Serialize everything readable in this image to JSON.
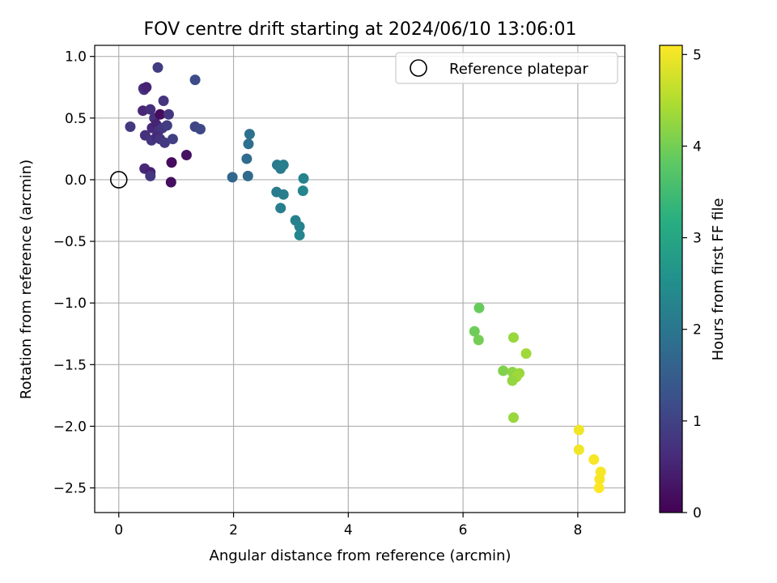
{
  "chart_data": {
    "type": "scatter",
    "title": "FOV centre drift starting at 2024/06/10 13:06:01",
    "xlabel": "Angular distance from reference (arcmin)",
    "ylabel": "Rotation from reference (arcmin)",
    "xlim": [
      -0.42,
      8.82
    ],
    "ylim": [
      -2.7,
      1.09
    ],
    "xticks": [
      0,
      2,
      4,
      6,
      8
    ],
    "xtick_labels": [
      "0",
      "2",
      "4",
      "6",
      "8"
    ],
    "yticks": [
      1.0,
      0.5,
      0.0,
      -0.5,
      -1.0,
      -1.5,
      -2.0,
      -2.5
    ],
    "ytick_labels": [
      "1.0",
      "0.5",
      "0.0",
      "−0.5",
      "−1.0",
      "−1.5",
      "−2.0",
      "−2.5"
    ],
    "grid": true,
    "legend": {
      "position": "upper right",
      "entries": [
        "Reference platepar"
      ]
    },
    "reference_point": {
      "x": 0.0,
      "y": 0.0
    },
    "colorbar": {
      "label": "Hours from first FF file",
      "range": [
        0,
        5.1
      ],
      "ticks": [
        0,
        1,
        2,
        3,
        4,
        5
      ],
      "tick_labels": [
        "0",
        "1",
        "2",
        "3",
        "4",
        "5"
      ],
      "colormap": "viridis"
    },
    "points": [
      {
        "x": 0.2,
        "y": 0.43,
        "h": 0.85
      },
      {
        "x": 0.43,
        "y": 0.74,
        "h": 0.6
      },
      {
        "x": 0.44,
        "y": 0.73,
        "h": 0.7
      },
      {
        "x": 0.48,
        "y": 0.75,
        "h": 0.5
      },
      {
        "x": 0.68,
        "y": 0.91,
        "h": 0.9
      },
      {
        "x": 0.78,
        "y": 0.64,
        "h": 0.75
      },
      {
        "x": 0.42,
        "y": 0.56,
        "h": 0.55
      },
      {
        "x": 0.55,
        "y": 0.57,
        "h": 0.65
      },
      {
        "x": 0.62,
        "y": 0.5,
        "h": 0.7
      },
      {
        "x": 0.72,
        "y": 0.53,
        "h": 0.15
      },
      {
        "x": 0.87,
        "y": 0.53,
        "h": 0.8
      },
      {
        "x": 0.58,
        "y": 0.42,
        "h": 0.6
      },
      {
        "x": 0.65,
        "y": 0.45,
        "h": 0.5
      },
      {
        "x": 0.7,
        "y": 0.4,
        "h": 0.7
      },
      {
        "x": 0.76,
        "y": 0.42,
        "h": 0.8
      },
      {
        "x": 0.84,
        "y": 0.44,
        "h": 0.9
      },
      {
        "x": 0.46,
        "y": 0.36,
        "h": 0.7
      },
      {
        "x": 0.57,
        "y": 0.32,
        "h": 0.8
      },
      {
        "x": 0.66,
        "y": 0.35,
        "h": 0.6
      },
      {
        "x": 0.72,
        "y": 0.33,
        "h": 0.75
      },
      {
        "x": 0.8,
        "y": 0.3,
        "h": 0.85
      },
      {
        "x": 0.94,
        "y": 0.33,
        "h": 0.95
      },
      {
        "x": 1.18,
        "y": 0.2,
        "h": 0.25
      },
      {
        "x": 0.92,
        "y": 0.14,
        "h": 0.15
      },
      {
        "x": 0.45,
        "y": 0.09,
        "h": 0.55
      },
      {
        "x": 0.55,
        "y": 0.06,
        "h": 0.45
      },
      {
        "x": 0.55,
        "y": 0.03,
        "h": 0.8
      },
      {
        "x": 0.91,
        "y": -0.02,
        "h": 0.2
      },
      {
        "x": 1.33,
        "y": 0.81,
        "h": 1.15
      },
      {
        "x": 1.33,
        "y": 0.43,
        "h": 1.05
      },
      {
        "x": 1.42,
        "y": 0.41,
        "h": 1.1
      },
      {
        "x": 1.98,
        "y": 0.02,
        "h": 1.7
      },
      {
        "x": 2.25,
        "y": 0.03,
        "h": 1.75
      },
      {
        "x": 2.23,
        "y": 0.17,
        "h": 1.8
      },
      {
        "x": 2.26,
        "y": 0.29,
        "h": 1.85
      },
      {
        "x": 2.28,
        "y": 0.37,
        "h": 1.9
      },
      {
        "x": 2.76,
        "y": 0.12,
        "h": 2.05
      },
      {
        "x": 2.82,
        "y": 0.09,
        "h": 2.1
      },
      {
        "x": 2.87,
        "y": 0.12,
        "h": 2.15
      },
      {
        "x": 3.22,
        "y": 0.01,
        "h": 2.25
      },
      {
        "x": 2.75,
        "y": -0.1,
        "h": 2.1
      },
      {
        "x": 2.87,
        "y": -0.12,
        "h": 2.15
      },
      {
        "x": 3.21,
        "y": -0.09,
        "h": 2.3
      },
      {
        "x": 2.82,
        "y": -0.23,
        "h": 2.15
      },
      {
        "x": 3.08,
        "y": -0.33,
        "h": 2.2
      },
      {
        "x": 3.15,
        "y": -0.38,
        "h": 2.25
      },
      {
        "x": 3.15,
        "y": -0.45,
        "h": 2.3
      },
      {
        "x": 6.28,
        "y": -1.04,
        "h": 3.9
      },
      {
        "x": 6.2,
        "y": -1.23,
        "h": 3.95
      },
      {
        "x": 6.27,
        "y": -1.3,
        "h": 4.0
      },
      {
        "x": 6.88,
        "y": -1.28,
        "h": 4.3
      },
      {
        "x": 7.1,
        "y": -1.41,
        "h": 4.35
      },
      {
        "x": 6.7,
        "y": -1.55,
        "h": 4.1
      },
      {
        "x": 6.86,
        "y": -1.56,
        "h": 4.2
      },
      {
        "x": 6.98,
        "y": -1.57,
        "h": 4.3
      },
      {
        "x": 6.93,
        "y": -1.6,
        "h": 4.35
      },
      {
        "x": 6.86,
        "y": -1.63,
        "h": 4.25
      },
      {
        "x": 6.88,
        "y": -1.93,
        "h": 4.3
      },
      {
        "x": 8.02,
        "y": -2.03,
        "h": 5.0
      },
      {
        "x": 8.02,
        "y": -2.19,
        "h": 5.0
      },
      {
        "x": 8.28,
        "y": -2.27,
        "h": 5.05
      },
      {
        "x": 8.4,
        "y": -2.37,
        "h": 5.05
      },
      {
        "x": 8.38,
        "y": -2.43,
        "h": 5.05
      },
      {
        "x": 8.37,
        "y": -2.5,
        "h": 5.1
      }
    ]
  }
}
